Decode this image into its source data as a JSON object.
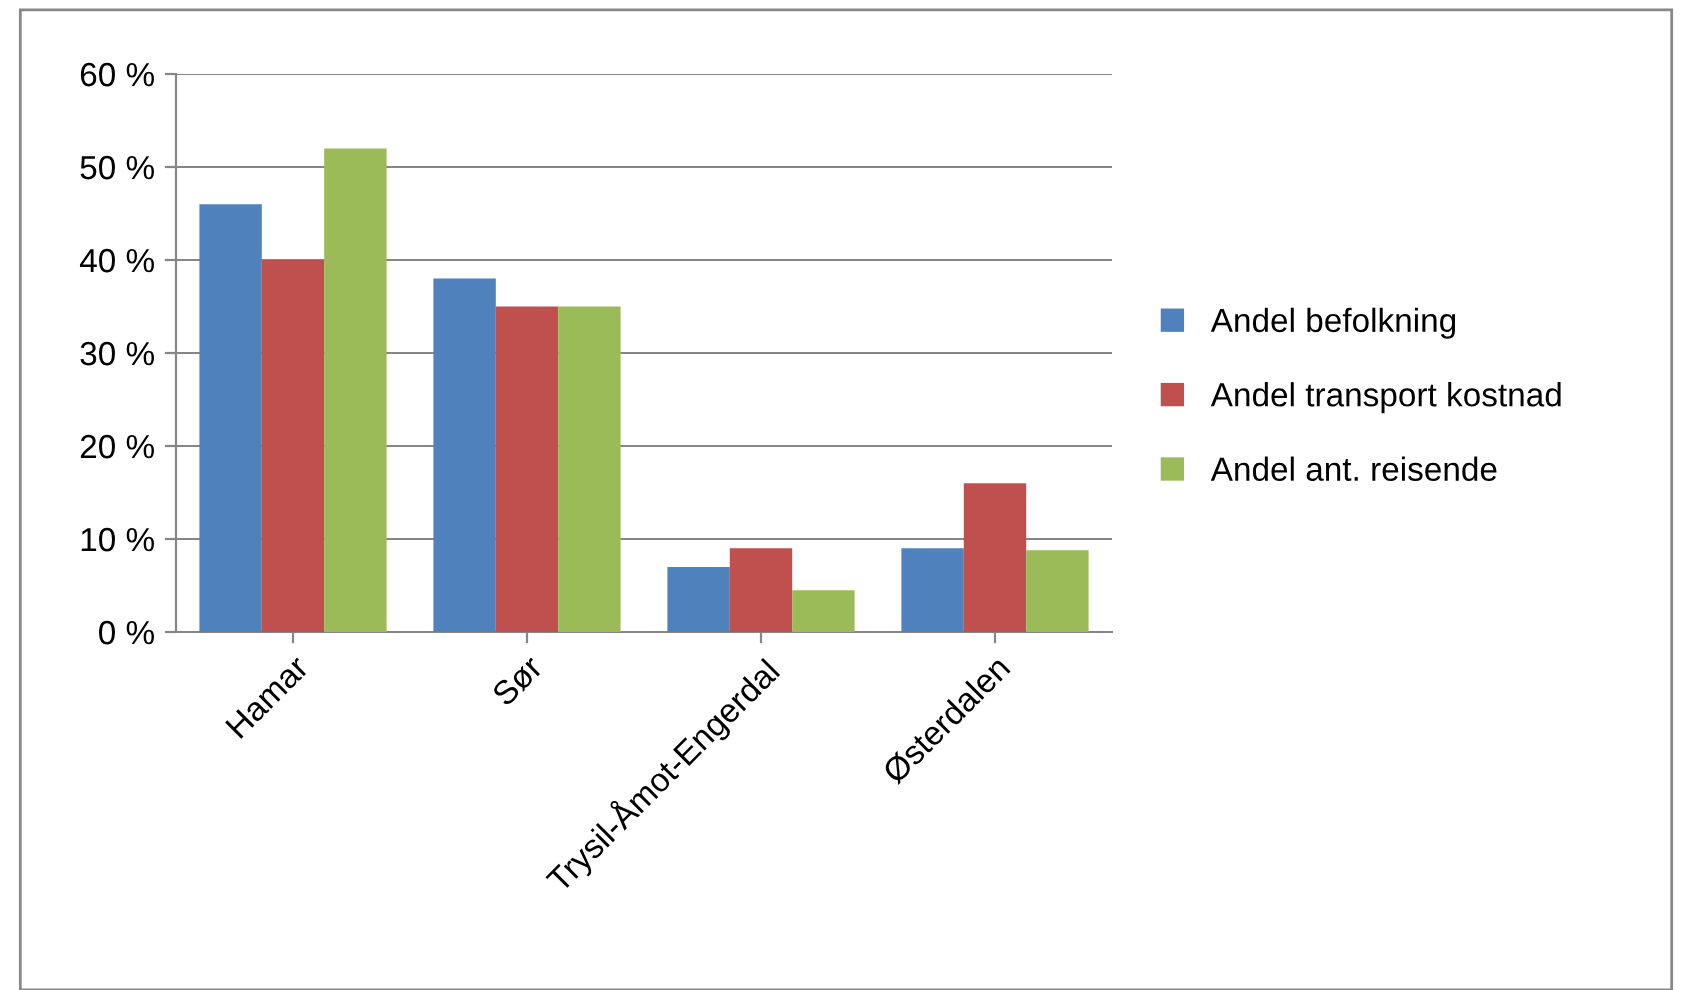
{
  "chart_data": {
    "type": "bar",
    "categories": [
      "Hamar",
      "Sør",
      "Trysil-Åmot-Engerdal",
      "Østerdalen"
    ],
    "series": [
      {
        "name": "Andel befolkning",
        "color": "#4f81bd",
        "values": [
          46,
          38,
          7,
          9
        ]
      },
      {
        "name": "Andel transport kostnad",
        "color": "#c0504d",
        "values": [
          40,
          35,
          9,
          16
        ]
      },
      {
        "name": "Andel ant. reisende",
        "color": "#9bbb59",
        "values": [
          52,
          35,
          4.5,
          8.8
        ]
      }
    ],
    "ylim": [
      0,
      60
    ],
    "yticks": [
      {
        "value": 0,
        "label": "0 %"
      },
      {
        "value": 10,
        "label": "10 %"
      },
      {
        "value": 20,
        "label": "20 %"
      },
      {
        "value": 30,
        "label": "30 %"
      },
      {
        "value": 40,
        "label": "40 %"
      },
      {
        "value": 50,
        "label": "50 %"
      },
      {
        "value": 60,
        "label": "60 %"
      }
    ],
    "grid": "y",
    "legend": "right"
  }
}
